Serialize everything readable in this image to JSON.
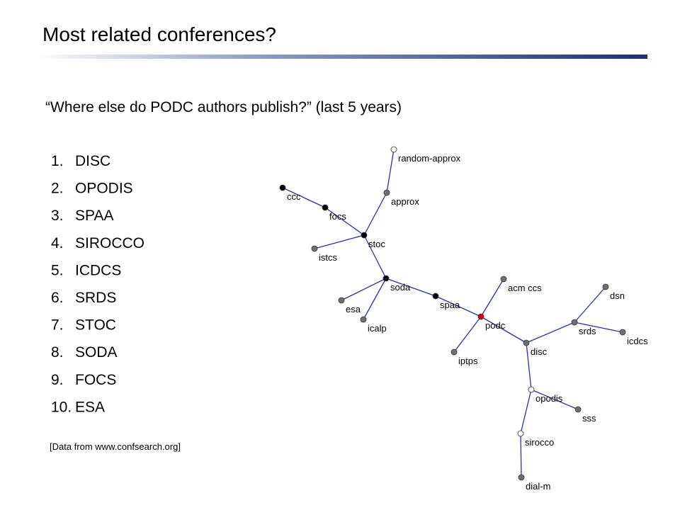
{
  "header": {
    "title": "Most related conferences?"
  },
  "subtitle": "“Where else do PODC authors publish?” (last 5 years)",
  "list": [
    {
      "number": "1.",
      "name": "DISC"
    },
    {
      "number": "2.",
      "name": "OPODIS"
    },
    {
      "number": "3.",
      "name": "SPAA"
    },
    {
      "number": "4.",
      "name": "SIROCCO"
    },
    {
      "number": "5.",
      "name": "ICDCS"
    },
    {
      "number": "6.",
      "name": "SRDS"
    },
    {
      "number": "7.",
      "name": "STOC"
    },
    {
      "number": "8.",
      "name": "SODA"
    },
    {
      "number": "9.",
      "name": "FOCS"
    },
    {
      "number": "10.",
      "name": "ESA"
    }
  ],
  "source": "[Data from www.confsearch.org]",
  "nodes": [
    {
      "label": "random-approx",
      "color": "#ffffff"
    },
    {
      "label": "approx",
      "color": "#707070"
    },
    {
      "label": "ccc",
      "color": "#000000"
    },
    {
      "label": "focs",
      "color": "#000000"
    },
    {
      "label": "stoc",
      "color": "#000000"
    },
    {
      "label": "istcs",
      "color": "#707070"
    },
    {
      "label": "soda",
      "color": "#000000"
    },
    {
      "label": "spaa",
      "color": "#000000"
    },
    {
      "label": "esa",
      "color": "#707070"
    },
    {
      "label": "icalp",
      "color": "#707070"
    },
    {
      "label": "acm ccs",
      "color": "#707070"
    },
    {
      "label": "podc",
      "color": "#e00000"
    },
    {
      "label": "iptps",
      "color": "#707070"
    },
    {
      "label": "dsn",
      "color": "#707070"
    },
    {
      "label": "srds",
      "color": "#707070"
    },
    {
      "label": "icdcs",
      "color": "#707070"
    },
    {
      "label": "disc",
      "color": "#707070"
    },
    {
      "label": "opodis",
      "color": "#ffffff"
    },
    {
      "label": "sss",
      "color": "#707070"
    },
    {
      "label": "sirocco",
      "color": "#ffffff"
    },
    {
      "label": "dial-m",
      "color": "#707070"
    }
  ]
}
